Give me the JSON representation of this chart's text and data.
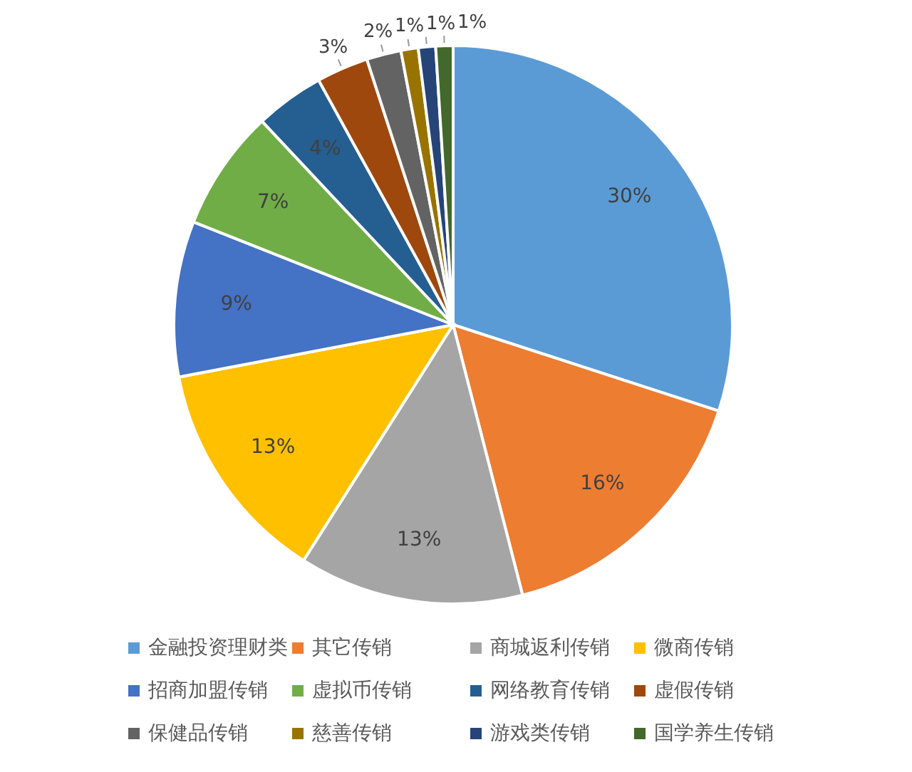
{
  "chart_data": {
    "type": "pie",
    "categories": [
      "金融投资理财类",
      "其它传销",
      "商城返利传销",
      "微商传销",
      "招商加盟传销",
      "虚拟币传销",
      "网络教育传销",
      "虚假传销",
      "保健品传销",
      "慈善传销",
      "游戏类传销",
      "国学养生传销"
    ],
    "values": [
      30,
      16,
      13,
      13,
      9,
      7,
      4,
      3,
      2,
      1,
      1,
      1
    ],
    "value_labels": [
      "30%",
      "16%",
      "13%",
      "13%",
      "9%",
      "7%",
      "4%",
      "3%",
      "2%",
      "1%",
      "1%",
      "1%"
    ],
    "colors": [
      "#5b9bd5",
      "#ed7d31",
      "#a5a5a5",
      "#ffc000",
      "#4472c4",
      "#70ad47",
      "#255e91",
      "#9e480e",
      "#636363",
      "#997300",
      "#264478",
      "#43682b"
    ],
    "legend": "bottom"
  }
}
